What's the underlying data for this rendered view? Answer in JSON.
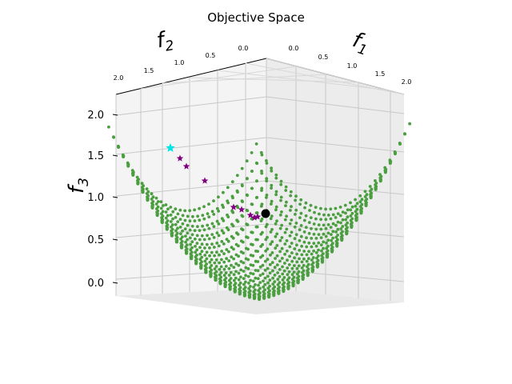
{
  "chart_data": {
    "type": "scatter",
    "title": "Objective Space",
    "axes": {
      "x": {
        "label": "f",
        "subscript": "1",
        "range": [
          0.0,
          2.0
        ],
        "ticks": [
          "0.0",
          "0.5",
          "1.0",
          "1.5",
          "2.0"
        ]
      },
      "y": {
        "label": "f",
        "subscript": "2",
        "range": [
          0.0,
          2.0
        ],
        "ticks": [
          "0.0",
          "0.5",
          "1.0",
          "1.5",
          "2.0"
        ]
      },
      "z": {
        "label": "f",
        "subscript": "3",
        "range": [
          0.0,
          2.0
        ],
        "ticks": [
          "0.0",
          "0.5",
          "1.0",
          "1.5",
          "2.0"
        ]
      }
    },
    "grid": true,
    "series": [
      {
        "kind": "pareto-front-surface",
        "color": "#4a9e3f",
        "marker": "circle",
        "grid_points_per_side": 32
      },
      {
        "kind": "neighborhood-region",
        "color": "#f0a0a8",
        "marker": "circle",
        "center": [
          0.6,
          0.6,
          0.75
        ],
        "radius": 0.35
      },
      {
        "kind": "trajectory",
        "color": "#800080",
        "marker": "star",
        "points": [
          [
            0.95,
            0.15,
            1.6
          ],
          [
            0.9,
            0.2,
            1.45
          ],
          [
            0.85,
            0.25,
            1.35
          ],
          [
            0.75,
            0.35,
            1.2
          ],
          [
            0.65,
            0.45,
            0.95
          ],
          [
            0.63,
            0.5,
            0.88
          ],
          [
            0.6,
            0.55,
            0.82
          ],
          [
            0.58,
            0.57,
            0.78
          ]
        ]
      },
      {
        "kind": "start",
        "color": "#00e5e5",
        "marker": "star",
        "points": [
          [
            0.98,
            0.12,
            1.68
          ]
        ]
      },
      {
        "kind": "reference",
        "color": "#000000",
        "marker": "circle",
        "points": [
          [
            0.6,
            0.6,
            0.75
          ]
        ]
      }
    ],
    "colors": {
      "pane": "#f2f2f2",
      "pane_side": "#ebebeb",
      "grid": "#c8c8c8"
    }
  }
}
